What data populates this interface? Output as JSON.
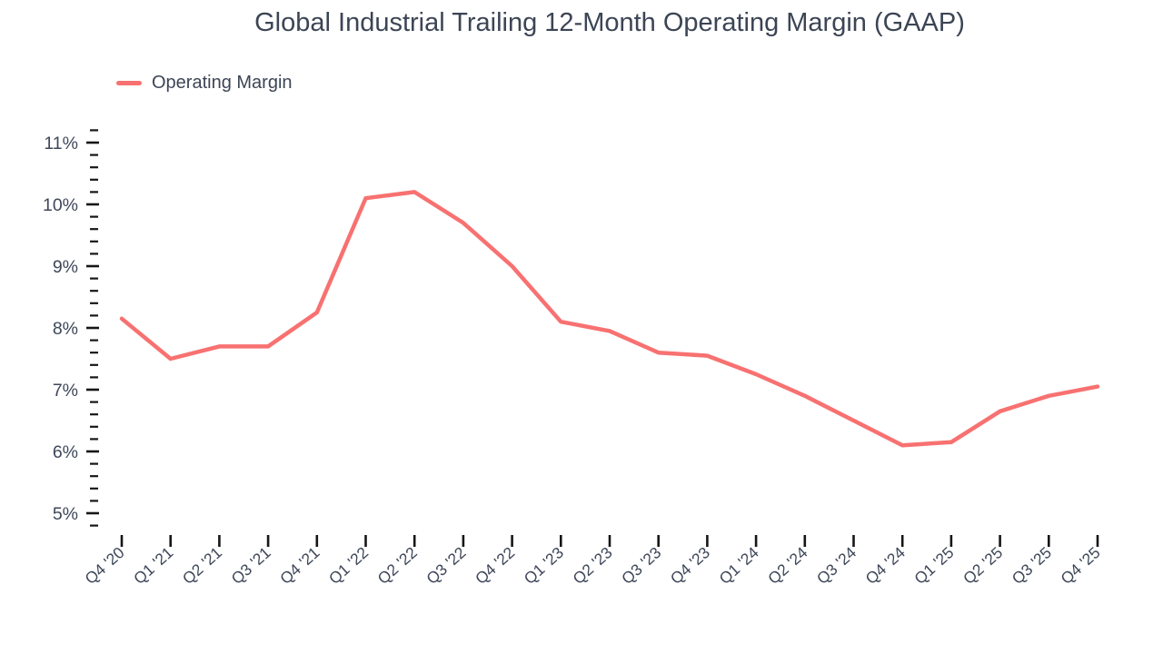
{
  "title": "Global Industrial Trailing 12-Month Operating Margin (GAAP)",
  "legend": {
    "label": "Operating Margin"
  },
  "colors": {
    "line": "#F87171",
    "tick": "#161616",
    "text": "#3E4759"
  },
  "chart_data": {
    "type": "line",
    "title": "Global Industrial Trailing 12-Month Operating Margin (GAAP)",
    "categories": [
      "Q4 '20",
      "Q1 '21",
      "Q2 '21",
      "Q3 '21",
      "Q4 '21",
      "Q1 '22",
      "Q2 '22",
      "Q3 '22",
      "Q4 '22",
      "Q1 '23",
      "Q2 '23",
      "Q3 '23",
      "Q4 '23",
      "Q1 '24",
      "Q2 '24",
      "Q3 '24",
      "Q4 '24",
      "Q1 '25",
      "Q2 '25",
      "Q3 '25",
      "Q4 '25"
    ],
    "series": [
      {
        "name": "Operating Margin",
        "values": [
          8.15,
          7.5,
          7.7,
          7.7,
          8.25,
          10.1,
          10.2,
          9.7,
          9.0,
          8.1,
          7.95,
          7.6,
          7.55,
          7.25,
          6.9,
          6.5,
          6.1,
          6.15,
          6.65,
          6.9,
          7.05
        ]
      }
    ],
    "xlabel": "",
    "ylabel": "",
    "y_unit": "%",
    "ylim": [
      4.8,
      11.2
    ],
    "y_major_ticks": [
      5,
      6,
      7,
      8,
      9,
      10,
      11
    ],
    "y_major_tick_labels": [
      "5%",
      "6%",
      "7%",
      "8%",
      "9%",
      "10%",
      "11%"
    ],
    "y_minor_tick_step": 0.2,
    "grid": false,
    "legend_position": "top-left"
  }
}
